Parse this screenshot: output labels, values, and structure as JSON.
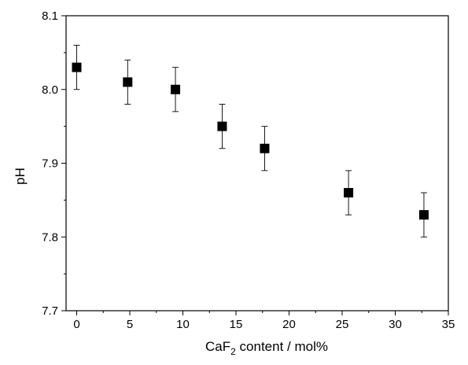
{
  "chart_data": {
    "type": "scatter",
    "title": "",
    "xlabel": "CaF",
    "xlabel_subscript": "2",
    "xlabel_rest": " content / mol%",
    "ylabel": "pH",
    "xlim": [
      -1,
      35
    ],
    "ylim": [
      7.7,
      8.1
    ],
    "x_ticks": [
      0,
      5,
      10,
      15,
      20,
      25,
      30,
      35
    ],
    "y_ticks": [
      7.7,
      7.8,
      7.9,
      8.0,
      8.1
    ],
    "x_tick_labels": [
      "0",
      "5",
      "10",
      "15",
      "20",
      "25",
      "30",
      "35"
    ],
    "y_tick_labels": [
      "7.7",
      "7.8",
      "7.9",
      "8.0",
      "8.1"
    ],
    "grid": false,
    "legend": false,
    "marker": "square",
    "marker_color": "#000000",
    "points": [
      {
        "x": 0.0,
        "y": 8.03,
        "err": 0.03
      },
      {
        "x": 4.8,
        "y": 8.01,
        "err": 0.03
      },
      {
        "x": 9.3,
        "y": 8.0,
        "err": 0.03
      },
      {
        "x": 13.7,
        "y": 7.95,
        "err": 0.03
      },
      {
        "x": 17.7,
        "y": 7.92,
        "err": 0.03
      },
      {
        "x": 25.6,
        "y": 7.86,
        "err": 0.03
      },
      {
        "x": 32.7,
        "y": 7.83,
        "err": 0.03
      }
    ]
  }
}
